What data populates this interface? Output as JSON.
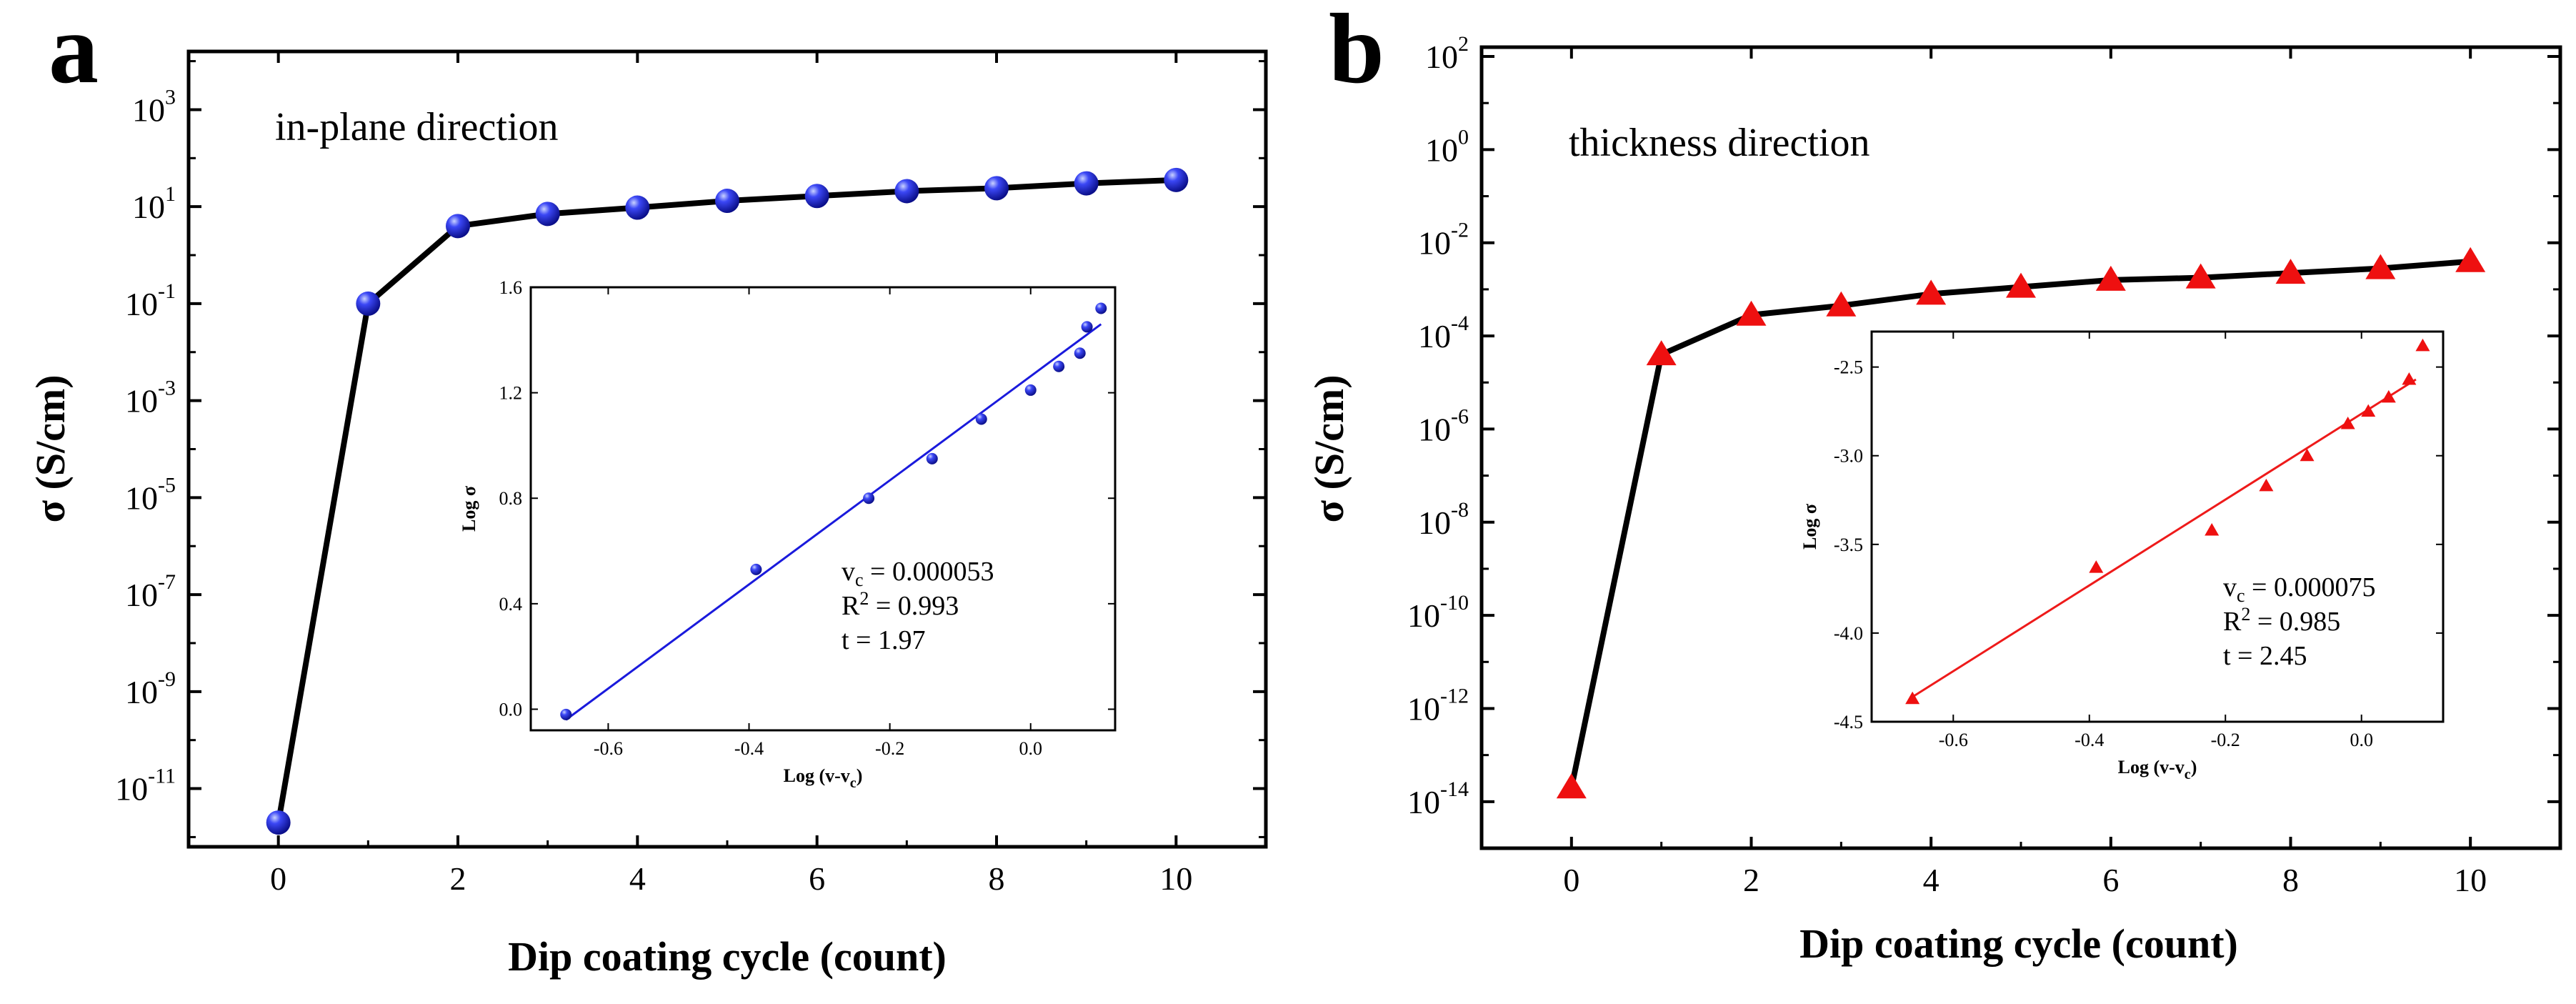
{
  "chart_data": [
    {
      "type": "scatter",
      "panel_label": "a",
      "annotation": "in-plane direction",
      "xlabel": "Dip coating cycle (count)",
      "ylabel": "σ (S/cm)",
      "x_ticks": [
        0,
        2,
        4,
        6,
        8,
        10
      ],
      "y_ticks": [
        {
          "base": "10",
          "exp": "-11"
        },
        {
          "base": "10",
          "exp": "-9"
        },
        {
          "base": "10",
          "exp": "-7"
        },
        {
          "base": "10",
          "exp": "-5"
        },
        {
          "base": "10",
          "exp": "-3"
        },
        {
          "base": "10",
          "exp": "-1"
        },
        {
          "base": "10",
          "exp": "1"
        },
        {
          "base": "10",
          "exp": "3"
        }
      ],
      "xlim": [
        -1,
        11
      ],
      "ylim_log10": [
        -12.2,
        4.2
      ],
      "marker": "circle",
      "color": "#2424e0",
      "line_color": "#000000",
      "series": [
        {
          "name": "in-plane",
          "x": [
            0,
            1,
            2,
            3,
            4,
            5,
            6,
            7,
            8,
            9,
            10
          ],
          "y_log10": [
            -11.7,
            -1.0,
            0.6,
            0.85,
            0.98,
            1.12,
            1.22,
            1.32,
            1.38,
            1.48,
            1.55
          ]
        }
      ],
      "inset": {
        "xlabel": "Log (v-v",
        "xlabel_sub": "c",
        "xlabel_end": ")",
        "ylabel": "Log σ",
        "x_ticks": [
          "-0.6",
          "-0.4",
          "-0.2",
          "0.0"
        ],
        "x_tick_values": [
          -0.6,
          -0.4,
          -0.2,
          0.0
        ],
        "y_ticks": [
          "0.0",
          "0.4",
          "0.8",
          "1.2",
          "1.6"
        ],
        "y_tick_values": [
          0.0,
          0.4,
          0.8,
          1.2,
          1.6
        ],
        "xlim": [
          -0.71,
          0.12
        ],
        "ylim": [
          -0.08,
          1.6
        ],
        "x": [
          -0.66,
          -0.39,
          -0.23,
          -0.14,
          -0.07,
          0.0,
          0.04,
          0.07,
          0.08,
          0.1
        ],
        "y": [
          -0.02,
          0.53,
          0.8,
          0.95,
          1.1,
          1.21,
          1.3,
          1.35,
          1.45,
          1.52
        ],
        "fit": {
          "x": [
            -0.66,
            0.1
          ],
          "y": [
            -0.04,
            1.46
          ]
        },
        "fit_color": "#1a1adc",
        "stats": {
          "vc_label": "v",
          "vc_sub": "c",
          "vc_value": " = 0.000053",
          "r2_label": "R",
          "r2_sup": "2",
          "r2_value": " = 0.993",
          "t_text": "t = 1.97"
        }
      }
    },
    {
      "type": "scatter",
      "panel_label": "b",
      "annotation": "thickness direction",
      "xlabel": "Dip coating cycle (count)",
      "ylabel": "σ (S/cm)",
      "x_ticks": [
        0,
        2,
        4,
        6,
        8,
        10
      ],
      "y_ticks": [
        {
          "base": "10",
          "exp": "-14"
        },
        {
          "base": "10",
          "exp": "-12"
        },
        {
          "base": "10",
          "exp": "-10"
        },
        {
          "base": "10",
          "exp": "-8"
        },
        {
          "base": "10",
          "exp": "-6"
        },
        {
          "base": "10",
          "exp": "-4"
        },
        {
          "base": "10",
          "exp": "-2"
        },
        {
          "base": "10",
          "exp": "0"
        },
        {
          "base": "10",
          "exp": "2"
        }
      ],
      "xlim": [
        -1,
        11
      ],
      "ylim_log10": [
        -15.0,
        2.2
      ],
      "marker": "triangle",
      "color": "#ee1010",
      "line_color": "#000000",
      "series": [
        {
          "name": "thickness",
          "x": [
            0,
            1,
            2,
            3,
            4,
            5,
            6,
            7,
            8,
            9,
            10
          ],
          "y_log10": [
            -13.7,
            -4.4,
            -3.55,
            -3.35,
            -3.1,
            -2.95,
            -2.8,
            -2.75,
            -2.65,
            -2.55,
            -2.4
          ]
        }
      ],
      "inset": {
        "xlabel": "Log (v-v",
        "xlabel_sub": "c",
        "xlabel_end": ")",
        "ylabel": "Log σ",
        "x_ticks": [
          "-0.6",
          "-0.4",
          "-0.2",
          "0.0"
        ],
        "x_tick_values": [
          -0.6,
          -0.4,
          -0.2,
          0.0
        ],
        "y_ticks": [
          "-4.5",
          "-4.0",
          "-3.5",
          "-3.0",
          "-2.5"
        ],
        "y_tick_values": [
          -4.5,
          -4.0,
          -3.5,
          -3.0,
          -2.5
        ],
        "xlim": [
          -0.72,
          0.12
        ],
        "ylim": [
          -4.5,
          -2.3
        ],
        "x": [
          -0.66,
          -0.39,
          -0.22,
          -0.14,
          -0.08,
          -0.02,
          0.01,
          0.04,
          0.07,
          0.09
        ],
        "y": [
          -4.37,
          -3.63,
          -3.42,
          -3.17,
          -3.0,
          -2.82,
          -2.75,
          -2.67,
          -2.57,
          -2.38
        ],
        "fit": {
          "x": [
            -0.66,
            0.08
          ],
          "y": [
            -4.36,
            -2.57
          ]
        },
        "fit_color": "#ee1a1a",
        "stats": {
          "vc_label": "v",
          "vc_sub": "c",
          "vc_value": " = 0.000075",
          "r2_label": "R",
          "r2_sup": "2",
          "r2_value": " = 0.985",
          "t_text": "t = 2.45"
        }
      }
    }
  ]
}
